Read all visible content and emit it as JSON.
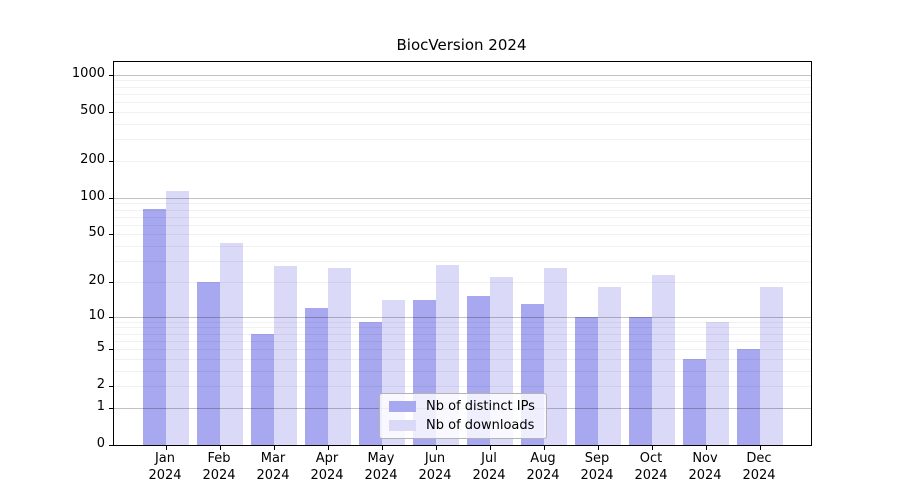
{
  "chart_data": {
    "type": "bar",
    "title": "BiocVersion 2024",
    "xlabel": "",
    "ylabel": "",
    "categories": [
      "Jan",
      "Feb",
      "Mar",
      "Apr",
      "May",
      "Jun",
      "Jul",
      "Aug",
      "Sep",
      "Oct",
      "Nov",
      "Dec"
    ],
    "year": "2024",
    "series": [
      {
        "name": "Nb of distinct IPs",
        "color": "#a8a8f0",
        "values": [
          81,
          20,
          7,
          12,
          9,
          14,
          15,
          13,
          10,
          10,
          4,
          5
        ]
      },
      {
        "name": "Nb of downloads",
        "color": "#dadaf8",
        "values": [
          113,
          42,
          27,
          26,
          14,
          28,
          22,
          26,
          18,
          23,
          9,
          18
        ]
      }
    ],
    "yscale": "log1p",
    "yticks": [
      0,
      1,
      2,
      5,
      10,
      20,
      50,
      100,
      200,
      500,
      1000
    ],
    "ylim": [
      0,
      1270
    ],
    "grid": "horizontal",
    "legend_position": "lower center"
  }
}
